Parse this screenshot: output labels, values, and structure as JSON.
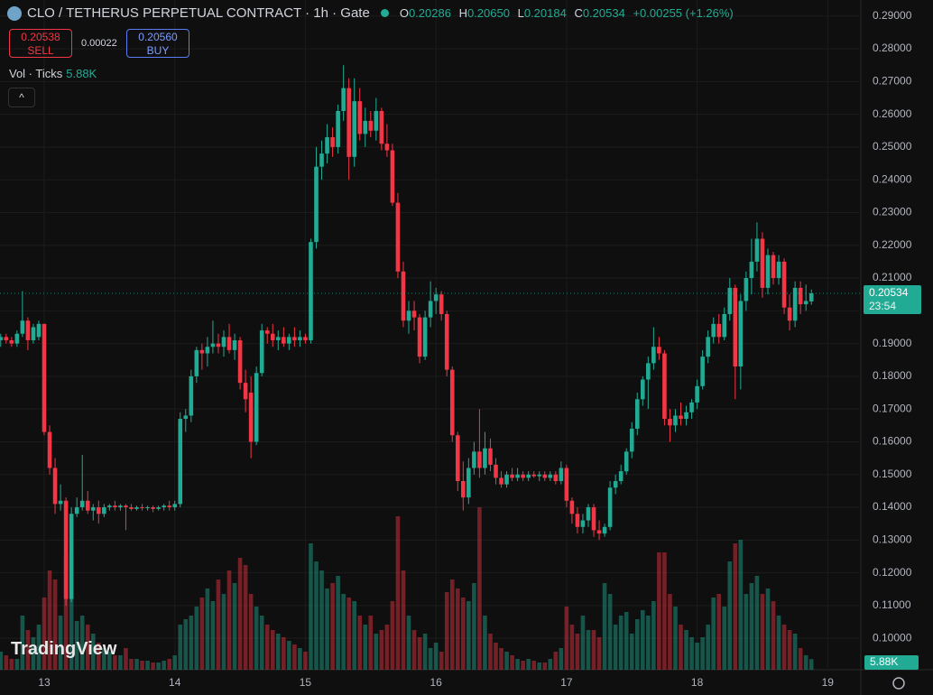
{
  "header": {
    "title": "CLO / TETHERUS PERPETUAL CONTRACT · 1h · Gate",
    "o_label": "O",
    "open": "0.20286",
    "h_label": "H",
    "high": "0.20650",
    "l_label": "L",
    "low": "0.20184",
    "c_label": "C",
    "close": "0.20534",
    "change": "+0.00255 (+1.26%)",
    "sell_price": "0.20538",
    "sell_label": "SELL",
    "spread": "0.00022",
    "buy_price": "0.20560",
    "buy_label": "BUY",
    "volume_label": "Vol · Ticks",
    "volume_value": "5.88K",
    "collapse": "^"
  },
  "chart_data": {
    "type": "candlestick",
    "up_color": "#22ab94",
    "down_color": "#f23645",
    "grid": true,
    "ylim": [
      0.0904,
      0.2949
    ],
    "yticks": [
      {
        "value": 0.29,
        "label": "0.29000"
      },
      {
        "value": 0.28,
        "label": "0.28000"
      },
      {
        "value": 0.27,
        "label": "0.27000"
      },
      {
        "value": 0.26,
        "label": "0.26000"
      },
      {
        "value": 0.25,
        "label": "0.25000"
      },
      {
        "value": 0.24,
        "label": "0.24000"
      },
      {
        "value": 0.23,
        "label": "0.23000"
      },
      {
        "value": 0.22,
        "label": "0.22000"
      },
      {
        "value": 0.21,
        "label": "0.21000"
      },
      {
        "value": 0.2,
        "label": "0.20000"
      },
      {
        "value": 0.19,
        "label": "0.19000"
      },
      {
        "value": 0.18,
        "label": "0.18000"
      },
      {
        "value": 0.17,
        "label": "0.17000"
      },
      {
        "value": 0.16,
        "label": "0.16000"
      },
      {
        "value": 0.15,
        "label": "0.15000"
      },
      {
        "value": 0.14,
        "label": "0.14000"
      },
      {
        "value": 0.13,
        "label": "0.13000"
      },
      {
        "value": 0.12,
        "label": "0.12000"
      },
      {
        "value": 0.11,
        "label": "0.11000"
      },
      {
        "value": 0.1,
        "label": "0.10000"
      }
    ],
    "volume_ylim": [
      0,
      86
    ],
    "last_price_label": "0.20534",
    "countdown": "23:54",
    "last_volume_label": "5.88K",
    "watermark": "TradingView",
    "categories": [
      null,
      null,
      null,
      null,
      null,
      null,
      null,
      null,
      "13",
      null,
      null,
      null,
      null,
      null,
      null,
      null,
      null,
      null,
      null,
      null,
      null,
      null,
      null,
      null,
      null,
      null,
      null,
      null,
      null,
      null,
      null,
      null,
      "14",
      null,
      null,
      null,
      null,
      null,
      null,
      null,
      null,
      null,
      null,
      null,
      null,
      null,
      null,
      null,
      null,
      null,
      null,
      null,
      null,
      null,
      null,
      null,
      "15",
      null,
      null,
      null,
      null,
      null,
      null,
      null,
      null,
      null,
      null,
      null,
      null,
      null,
      null,
      null,
      null,
      null,
      null,
      null,
      null,
      null,
      null,
      null,
      "16",
      null,
      null,
      null,
      null,
      null,
      null,
      null,
      null,
      null,
      null,
      null,
      null,
      null,
      null,
      null,
      null,
      null,
      null,
      null,
      null,
      null,
      null,
      null,
      "17",
      null,
      null,
      null,
      null,
      null,
      null,
      null,
      null,
      null,
      null,
      null,
      null,
      null,
      null,
      null,
      null,
      null,
      null,
      null,
      null,
      null,
      null,
      null,
      "18",
      null,
      null,
      null,
      null,
      null,
      null,
      null,
      null,
      null,
      null,
      null,
      null,
      null,
      null,
      null,
      null,
      null,
      null,
      null,
      null,
      null,
      null,
      null,
      "19"
    ],
    "open": [
      0.191,
      0.192,
      0.191,
      0.19,
      0.193,
      0.197,
      0.191,
      0.192,
      0.196,
      0.163,
      0.152,
      0.141,
      0.142,
      0.112,
      0.138,
      0.14,
      0.142,
      0.139,
      0.14,
      0.138,
      0.14,
      0.1405,
      0.14,
      0.1405,
      0.14,
      0.1395,
      0.14,
      0.1398,
      0.14,
      0.1395,
      0.14,
      0.1405,
      0.14,
      0.141,
      0.167,
      0.168,
      0.18,
      0.188,
      0.187,
      0.189,
      0.19,
      0.189,
      0.192,
      0.188,
      0.191,
      0.178,
      0.175,
      0.16,
      0.181,
      0.194,
      0.193,
      0.191,
      0.192,
      0.19,
      0.192,
      0.191,
      0.192,
      0.191,
      0.221,
      0.244,
      0.248,
      0.253,
      0.25,
      0.261,
      0.268,
      0.247,
      0.264,
      0.254,
      0.258,
      0.255,
      0.261,
      0.251,
      0.249,
      0.233,
      0.212,
      0.197,
      0.2,
      0.198,
      0.186,
      0.198,
      0.203,
      0.205,
      0.199,
      0.182,
      0.162,
      0.148,
      0.143,
      0.152,
      0.157,
      0.152,
      0.158,
      0.153,
      0.149,
      0.147,
      0.15,
      0.149,
      0.15,
      0.149,
      0.15,
      0.1495,
      0.15,
      0.149,
      0.15,
      0.148,
      0.152,
      0.142,
      0.138,
      0.134,
      0.136,
      0.14,
      0.133,
      0.132,
      0.134,
      0.146,
      0.148,
      0.151,
      0.157,
      0.164,
      0.173,
      0.179,
      0.184,
      0.189,
      0.187,
      0.167,
      0.165,
      0.168,
      0.167,
      0.169,
      0.172,
      0.177,
      0.186,
      0.192,
      0.196,
      0.192,
      0.199,
      0.207,
      0.183,
      0.203,
      0.21,
      0.215,
      0.222,
      0.207,
      0.217,
      0.21,
      0.215,
      0.201,
      0.197,
      0.207,
      0.202,
      0.20286,
      null,
      null,
      null
    ],
    "high": [
      0.193,
      0.193,
      0.192,
      0.194,
      0.206,
      0.198,
      0.196,
      0.197,
      0.196,
      0.165,
      0.155,
      0.147,
      0.143,
      0.14,
      0.143,
      0.156,
      0.145,
      0.141,
      0.142,
      0.141,
      0.141,
      0.142,
      0.141,
      0.141,
      0.141,
      0.1405,
      0.141,
      0.1405,
      0.1405,
      0.1405,
      0.141,
      0.142,
      0.142,
      0.169,
      0.17,
      0.182,
      0.189,
      0.19,
      0.192,
      0.197,
      0.193,
      0.194,
      0.196,
      0.193,
      0.192,
      0.182,
      0.18,
      0.183,
      0.196,
      0.195,
      0.196,
      0.194,
      0.195,
      0.193,
      0.195,
      0.194,
      0.193,
      0.222,
      0.25,
      0.252,
      0.257,
      0.256,
      0.263,
      0.275,
      0.271,
      0.271,
      0.268,
      0.262,
      0.261,
      0.265,
      0.262,
      0.257,
      0.251,
      0.236,
      0.215,
      0.203,
      0.203,
      0.199,
      0.2,
      0.209,
      0.207,
      0.206,
      0.2,
      0.183,
      0.163,
      0.154,
      0.155,
      0.16,
      0.17,
      0.163,
      0.161,
      0.155,
      0.151,
      0.151,
      0.152,
      0.152,
      0.151,
      0.151,
      0.151,
      0.151,
      0.151,
      0.151,
      0.151,
      0.154,
      0.153,
      0.143,
      0.14,
      0.138,
      0.141,
      0.141,
      0.136,
      0.135,
      0.148,
      0.15,
      0.153,
      0.158,
      0.166,
      0.175,
      0.18,
      0.186,
      0.195,
      0.192,
      0.188,
      0.17,
      0.17,
      0.172,
      0.171,
      0.173,
      0.179,
      0.188,
      0.194,
      0.198,
      0.199,
      0.201,
      0.21,
      0.208,
      0.205,
      0.212,
      0.222,
      0.227,
      0.224,
      0.219,
      0.218,
      0.217,
      0.216,
      0.205,
      0.209,
      0.209,
      0.208,
      0.2065,
      null,
      null,
      null
    ],
    "low": [
      0.189,
      0.19,
      0.189,
      0.189,
      0.192,
      0.188,
      0.19,
      0.191,
      0.162,
      0.15,
      0.138,
      0.139,
      0.11,
      0.111,
      0.137,
      0.139,
      0.138,
      0.136,
      0.135,
      0.137,
      0.139,
      0.139,
      0.139,
      0.133,
      0.139,
      0.139,
      0.139,
      0.139,
      0.1385,
      0.139,
      0.139,
      0.139,
      0.139,
      0.14,
      0.163,
      0.166,
      0.178,
      0.182,
      0.183,
      0.187,
      0.187,
      0.186,
      0.187,
      0.185,
      0.176,
      0.169,
      0.155,
      0.159,
      0.18,
      0.19,
      0.189,
      0.188,
      0.189,
      0.188,
      0.189,
      0.189,
      0.19,
      0.19,
      0.219,
      0.24,
      0.245,
      0.247,
      0.248,
      0.258,
      0.24,
      0.244,
      0.252,
      0.25,
      0.253,
      0.252,
      0.249,
      0.247,
      0.232,
      0.21,
      0.195,
      0.193,
      0.194,
      0.184,
      0.185,
      0.195,
      0.199,
      0.197,
      0.18,
      0.16,
      0.145,
      0.139,
      0.141,
      0.15,
      0.149,
      0.15,
      0.151,
      0.147,
      0.146,
      0.146,
      0.148,
      0.148,
      0.148,
      0.148,
      0.149,
      0.148,
      0.148,
      0.148,
      0.147,
      0.147,
      0.14,
      0.135,
      0.132,
      0.132,
      0.134,
      0.131,
      0.13,
      0.131,
      0.133,
      0.144,
      0.147,
      0.15,
      0.155,
      0.162,
      0.171,
      0.17,
      0.182,
      0.185,
      0.165,
      0.16,
      0.163,
      0.165,
      0.165,
      0.167,
      0.17,
      0.176,
      0.184,
      0.19,
      0.19,
      0.191,
      0.197,
      0.173,
      0.176,
      0.2,
      0.205,
      0.212,
      0.204,
      0.205,
      0.208,
      0.208,
      0.199,
      0.194,
      0.195,
      0.199,
      0.2,
      0.20184,
      null,
      null,
      null
    ],
    "close": [
      0.192,
      0.191,
      0.19,
      0.193,
      0.197,
      0.191,
      0.195,
      0.196,
      0.163,
      0.152,
      0.141,
      0.142,
      0.112,
      0.138,
      0.14,
      0.142,
      0.139,
      0.14,
      0.138,
      0.14,
      0.1405,
      0.14,
      0.1405,
      0.14,
      0.1395,
      0.14,
      0.1398,
      0.14,
      0.1395,
      0.14,
      0.1405,
      0.14,
      0.141,
      0.167,
      0.168,
      0.18,
      0.188,
      0.187,
      0.189,
      0.19,
      0.189,
      0.192,
      0.188,
      0.191,
      0.178,
      0.173,
      0.16,
      0.181,
      0.194,
      0.193,
      0.191,
      0.192,
      0.19,
      0.192,
      0.191,
      0.192,
      0.191,
      0.221,
      0.244,
      0.248,
      0.253,
      0.25,
      0.261,
      0.268,
      0.247,
      0.264,
      0.254,
      0.258,
      0.255,
      0.261,
      0.251,
      0.249,
      0.233,
      0.212,
      0.197,
      0.2,
      0.198,
      0.186,
      0.198,
      0.203,
      0.205,
      0.199,
      0.182,
      0.162,
      0.148,
      0.143,
      0.152,
      0.157,
      0.152,
      0.158,
      0.153,
      0.149,
      0.147,
      0.15,
      0.149,
      0.15,
      0.149,
      0.15,
      0.1495,
      0.15,
      0.149,
      0.15,
      0.148,
      0.152,
      0.142,
      0.138,
      0.134,
      0.136,
      0.14,
      0.133,
      0.132,
      0.134,
      0.146,
      0.148,
      0.151,
      0.157,
      0.164,
      0.173,
      0.179,
      0.184,
      0.189,
      0.187,
      0.167,
      0.165,
      0.168,
      0.167,
      0.169,
      0.172,
      0.177,
      0.186,
      0.192,
      0.196,
      0.192,
      0.199,
      0.207,
      0.183,
      0.203,
      0.21,
      0.215,
      0.222,
      0.207,
      0.217,
      0.21,
      0.215,
      0.201,
      0.197,
      0.207,
      0.202,
      0.203,
      0.20534,
      null,
      null,
      null
    ],
    "volume": [
      10,
      8,
      6,
      6,
      30,
      22,
      18,
      25,
      40,
      55,
      50,
      30,
      62,
      65,
      27,
      30,
      25,
      20,
      15,
      12,
      10,
      8,
      8,
      12,
      6,
      6,
      5,
      5,
      4,
      4,
      5,
      6,
      8,
      25,
      28,
      30,
      35,
      40,
      45,
      38,
      50,
      42,
      55,
      48,
      62,
      58,
      42,
      35,
      30,
      25,
      22,
      20,
      18,
      16,
      14,
      12,
      10,
      70,
      60,
      55,
      45,
      48,
      52,
      42,
      40,
      38,
      30,
      25,
      30,
      20,
      22,
      25,
      38,
      85,
      55,
      30,
      22,
      18,
      20,
      12,
      15,
      10,
      43,
      50,
      45,
      40,
      38,
      48,
      90,
      30,
      20,
      15,
      12,
      10,
      8,
      6,
      5,
      6,
      5,
      4,
      4,
      6,
      10,
      12,
      35,
      25,
      20,
      30,
      22,
      22,
      18,
      48,
      42,
      25,
      30,
      32,
      20,
      28,
      33,
      30,
      38,
      65,
      65,
      42,
      35,
      25,
      22,
      18,
      15,
      18,
      25,
      40,
      42,
      35,
      60,
      70,
      72,
      42,
      48,
      52,
      42,
      45,
      38,
      30,
      25,
      22,
      20,
      12,
      8,
      5.88,
      null,
      null,
      null
    ]
  }
}
